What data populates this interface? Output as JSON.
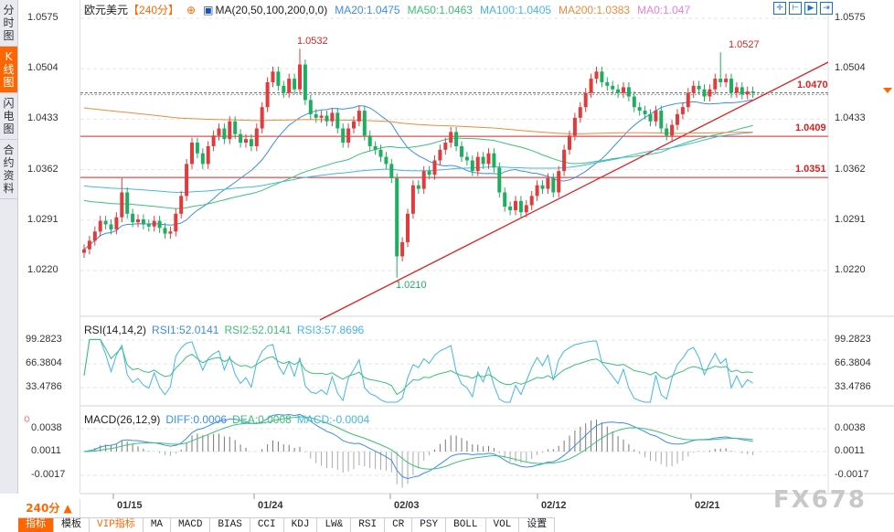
{
  "sidebar": {
    "items": [
      {
        "label": "分时图"
      },
      {
        "label": "K线图",
        "active": true
      },
      {
        "label": "闪电图"
      },
      {
        "label": "合约资料"
      }
    ]
  },
  "header": {
    "symbol": "欧元美元",
    "period": "【240分】",
    "ma_label": "MA(20,50,100,200,0,0)",
    "ma20": "MA20:1.0475",
    "ma50": "MA50:1.0463",
    "ma100": "MA100:1.0405",
    "ma200": "MA200:1.0383",
    "ma0": "MA0:1.047"
  },
  "colors": {
    "up": "#e23b3b",
    "down": "#1fae5f",
    "ma20": "#3b8ee8",
    "ma50": "#3cc078",
    "ma100": "#45b6e6",
    "ma200": "#f08a3c",
    "ma0": "#e880d8",
    "level": "#e02020",
    "accent": "#ff6600"
  },
  "toolbar": {
    "icons": [
      "crosshair-icon",
      "range-icon",
      "play-icon",
      "exit-icon"
    ]
  },
  "price_axis": [
    "1.0575",
    "1.0504",
    "1.0433",
    "1.0362",
    "1.0291",
    "1.0220"
  ],
  "annotations": {
    "high1": "1.0532",
    "high2": "1.0527",
    "low": "1.0210",
    "level1": "1.0470",
    "level2": "1.0409",
    "level3": "1.0351"
  },
  "rsi": {
    "label": "RSI(14,14,2)",
    "rsi1": "RSI1:52.0141",
    "rsi2": "RSI2:52.0141",
    "rsi3": "RSI3:57.8696",
    "axis": [
      "99.2823",
      "66.3804",
      "33.4786"
    ]
  },
  "macd": {
    "label": "MACD(26,12,9)",
    "diff": "DIFF:0.0006",
    "dea": "DEA:0.0008",
    "macd": "MACD:-0.0004",
    "axis": [
      "0.0038",
      "0.0011",
      "-0.0017"
    ]
  },
  "timeframe": "240分 ▲",
  "dates": [
    "01/15",
    "01/24",
    "02/03",
    "02/12",
    "02/21"
  ],
  "tabs": [
    "指标",
    "模板",
    "VIP指标",
    "MA",
    "MACD",
    "BIAS",
    "CCI",
    "KDJ",
    "LW&",
    "RSI",
    "CR",
    "PSY",
    "BOLL",
    "VOL",
    "设置"
  ],
  "watermark": "FX678",
  "chart_data": {
    "type": "candlestick",
    "ylim": [
      1.02,
      1.0575
    ],
    "closes": [
      1.025,
      1.0262,
      1.0275,
      1.029,
      1.0285,
      1.0278,
      1.0295,
      1.033,
      1.03,
      1.0288,
      1.0292,
      1.0285,
      1.0282,
      1.029,
      1.028,
      1.0272,
      1.0275,
      1.03,
      1.0325,
      1.037,
      1.04,
      1.0385,
      1.037,
      1.0395,
      1.041,
      1.042,
      1.0405,
      1.043,
      1.0412,
      1.04,
      1.0405,
      1.0395,
      1.042,
      1.045,
      1.0485,
      1.05,
      1.048,
      1.047,
      1.049,
      1.0475,
      1.051,
      1.046,
      1.044,
      1.0435,
      1.0438,
      1.043,
      1.0442,
      1.042,
      1.04,
      1.042,
      1.043,
      1.0445,
      1.041,
      1.0395,
      1.039,
      1.038,
      1.037,
      1.035,
      1.024,
      1.026,
      1.03,
      1.034,
      1.0335,
      1.036,
      1.0355,
      1.0375,
      1.039,
      1.04,
      1.0415,
      1.0395,
      1.038,
      1.0375,
      1.036,
      1.038,
      1.037,
      1.0385,
      1.0365,
      1.033,
      1.031,
      1.0305,
      1.0318,
      1.0302,
      1.0312,
      1.0325,
      1.034,
      1.0335,
      1.035,
      1.033,
      1.036,
      1.039,
      1.041,
      1.0435,
      1.045,
      1.047,
      1.049,
      1.05,
      1.0485,
      1.048,
      1.0475,
      1.047,
      1.0478,
      1.0465,
      1.045,
      1.0445,
      1.044,
      1.043,
      1.0445,
      1.042,
      1.041,
      1.0425,
      1.044,
      1.045,
      1.047,
      1.048,
      1.0475,
      1.0465,
      1.0475,
      1.049,
      1.0485,
      1.049,
      1.047,
      1.0478,
      1.0468,
      1.0472,
      1.047
    ],
    "levels": [
      1.047,
      1.0409,
      1.0351
    ],
    "highs": [
      1.0532,
      1.0527
    ],
    "low": 1.021
  }
}
